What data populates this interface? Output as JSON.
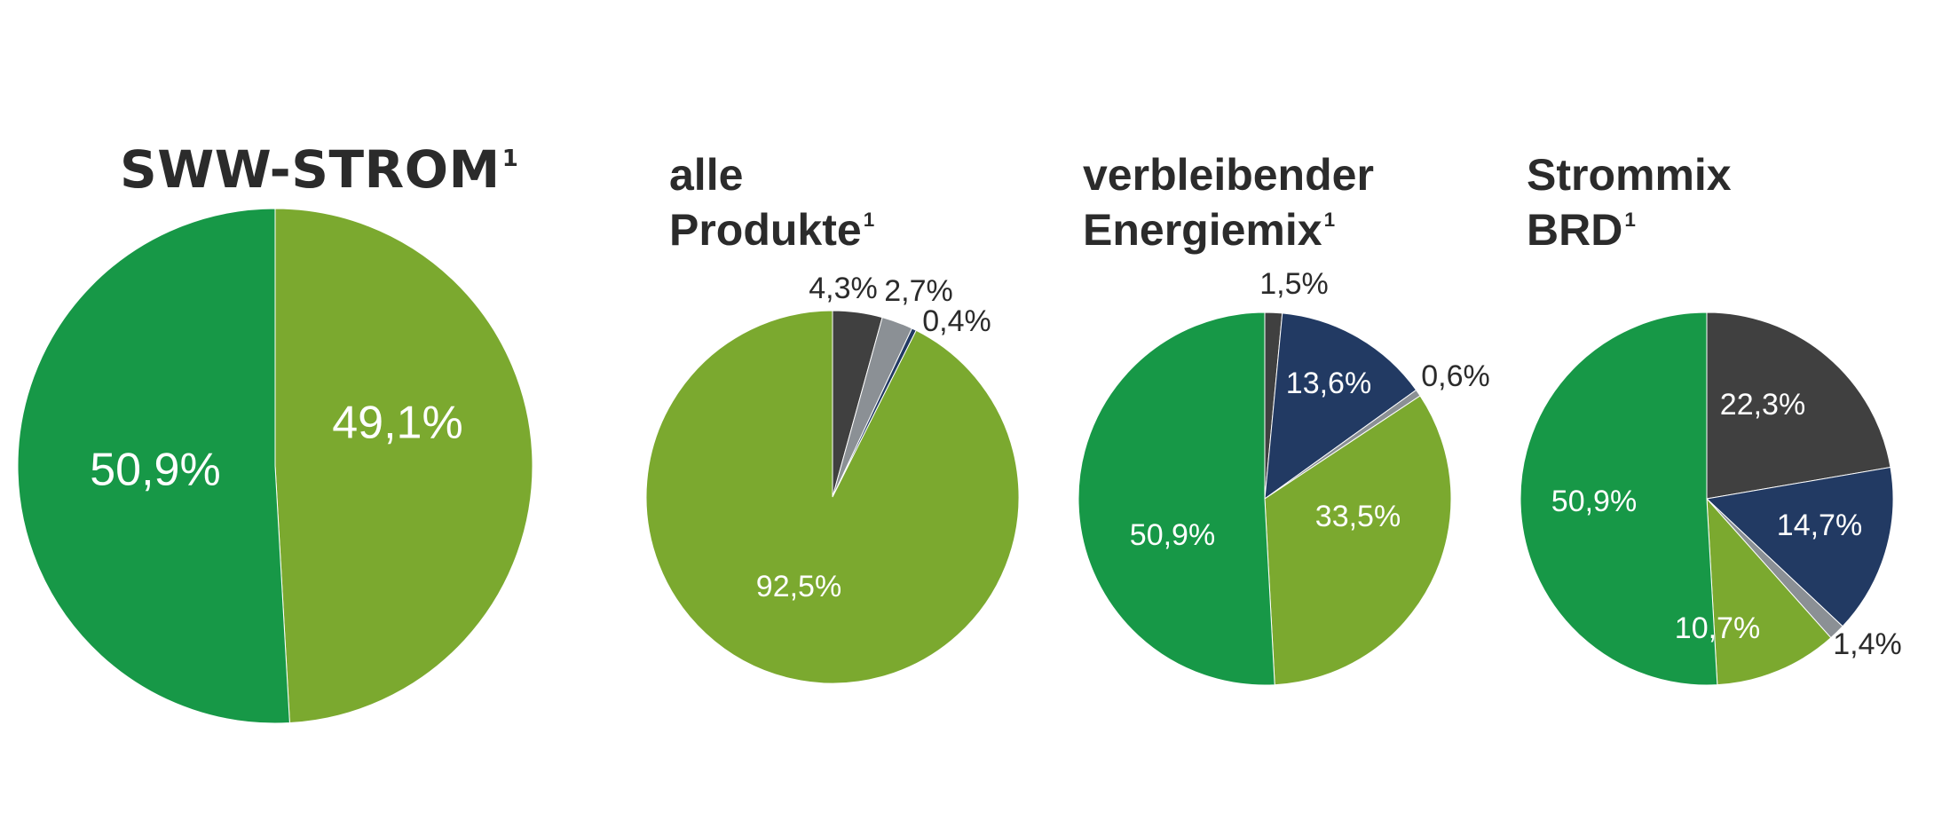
{
  "colors": {
    "dark_green": "#179847",
    "light_green": "#7ba92f",
    "dark_gray": "#404040",
    "light_gray": "#8b9095",
    "navy": "#223a63",
    "label_light": "#ffffff",
    "label_dark": "#2b2b2b"
  },
  "chart_data": [
    {
      "type": "pie",
      "title": "SWW-STROM",
      "title_sup": "1",
      "slices": [
        {
          "value": 49.1,
          "label": "49,1%",
          "color": "#7ba92f"
        },
        {
          "value": 50.9,
          "label": "50,9%",
          "color": "#179847"
        }
      ]
    },
    {
      "type": "pie",
      "title_lines": [
        "alle",
        "Produkte"
      ],
      "title_sup": "1",
      "slices": [
        {
          "value": 4.3,
          "label": "4,3%",
          "color": "#404040"
        },
        {
          "value": 2.7,
          "label": "2,7%",
          "color": "#8b9095"
        },
        {
          "value": 0.4,
          "label": "0,4%",
          "color": "#223a63"
        },
        {
          "value": 92.5,
          "label": "92,5%",
          "color": "#7ba92f"
        }
      ]
    },
    {
      "type": "pie",
      "title_lines": [
        "verbleibender",
        "Energiemix"
      ],
      "title_sup": "1",
      "slices": [
        {
          "value": 1.5,
          "label": "1,5%",
          "color": "#404040"
        },
        {
          "value": 13.6,
          "label": "13,6%",
          "color": "#223a63"
        },
        {
          "value": 0.6,
          "label": "0,6%",
          "color": "#8b9095"
        },
        {
          "value": 33.5,
          "label": "33,5%",
          "color": "#7ba92f"
        },
        {
          "value": 50.9,
          "label": "50,9%",
          "color": "#179847"
        }
      ]
    },
    {
      "type": "pie",
      "title_lines": [
        "Strommix",
        "BRD"
      ],
      "title_sup": "1",
      "slices": [
        {
          "value": 22.3,
          "label": "22,3%",
          "color": "#404040"
        },
        {
          "value": 14.7,
          "label": "14,7%",
          "color": "#223a63"
        },
        {
          "value": 1.4,
          "label": "1,4%",
          "color": "#8b9095"
        },
        {
          "value": 10.7,
          "label": "10,7%",
          "color": "#7ba92f"
        },
        {
          "value": 50.9,
          "label": "50,9%",
          "color": "#179847"
        }
      ]
    }
  ]
}
